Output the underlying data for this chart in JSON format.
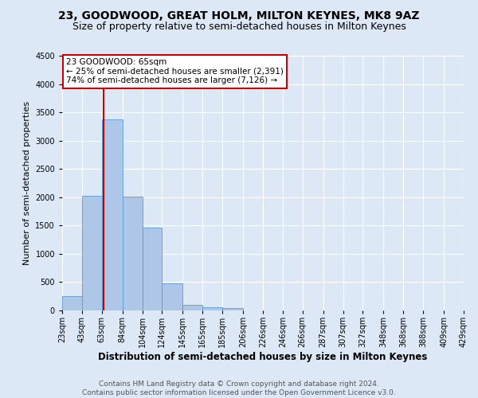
{
  "title": "23, GOODWOOD, GREAT HOLM, MILTON KEYNES, MK8 9AZ",
  "subtitle": "Size of property relative to semi-detached houses in Milton Keynes",
  "xlabel": "Distribution of semi-detached houses by size in Milton Keynes",
  "ylabel": "Number of semi-detached properties",
  "footer_line1": "Contains HM Land Registry data © Crown copyright and database right 2024.",
  "footer_line2": "Contains public sector information licensed under the Open Government Licence v3.0.",
  "annotation_title": "23 GOODWOOD: 65sqm",
  "annotation_line1": "← 25% of semi-detached houses are smaller (2,391)",
  "annotation_line2": "74% of semi-detached houses are larger (7,126) →",
  "property_size": 65,
  "bin_edges": [
    23,
    43,
    63,
    84,
    104,
    124,
    145,
    165,
    185,
    206,
    226,
    246,
    266,
    287,
    307,
    327,
    348,
    368,
    388,
    409,
    429
  ],
  "bar_values": [
    250,
    2020,
    3370,
    2010,
    1460,
    480,
    100,
    55,
    45,
    0,
    0,
    0,
    0,
    0,
    0,
    0,
    0,
    0,
    0,
    0
  ],
  "bar_color": "#aec6e8",
  "bar_edgecolor": "#5b9bd5",
  "vline_color": "#cc0000",
  "vline_x": 65,
  "annotation_box_edgecolor": "#cc0000",
  "annotation_box_facecolor": "#ffffff",
  "ylim": [
    0,
    4500
  ],
  "yticks": [
    0,
    500,
    1000,
    1500,
    2000,
    2500,
    3000,
    3500,
    4000,
    4500
  ],
  "bg_color": "#dce8f5",
  "plot_bg_color": "#dce8f5",
  "grid_color": "#ffffff",
  "title_fontsize": 10,
  "subtitle_fontsize": 9,
  "xlabel_fontsize": 8.5,
  "ylabel_fontsize": 8,
  "annotation_fontsize": 7.5,
  "tick_fontsize": 7,
  "footer_fontsize": 6.5
}
